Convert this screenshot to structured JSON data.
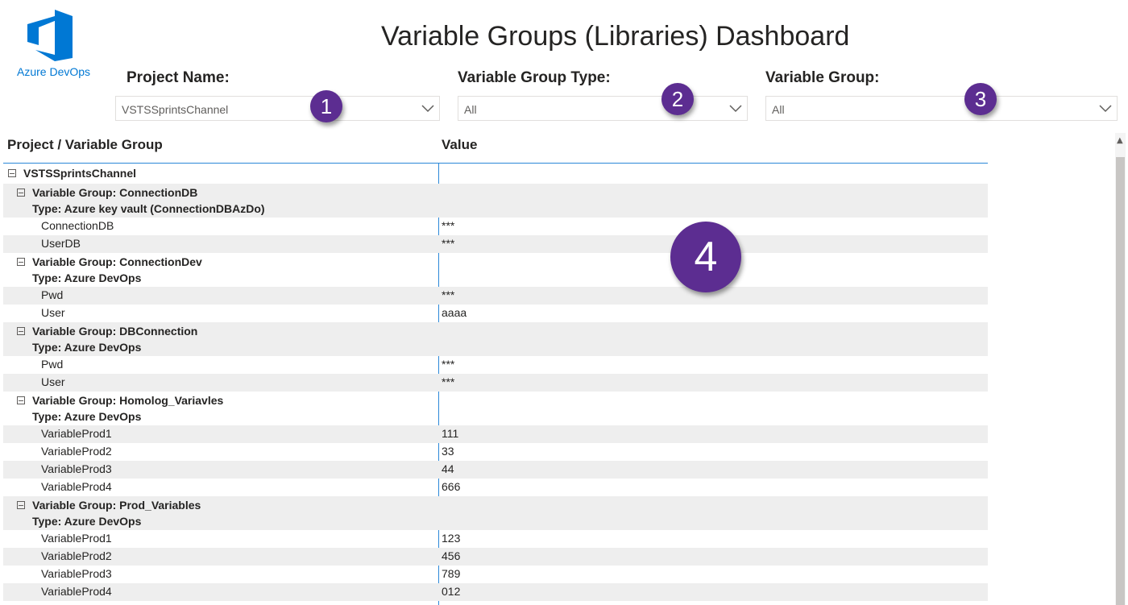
{
  "logo": {
    "text": "Azure DevOps",
    "color": "#0078d4"
  },
  "title": "Variable Groups (Libraries) Dashboard",
  "filters": [
    {
      "label": "Project Name:",
      "value": "VSTSSprintsChannel",
      "badge": "1"
    },
    {
      "label": "Variable Group Type:",
      "value": "All",
      "badge": "2"
    },
    {
      "label": "Variable Group:",
      "value": "All",
      "badge": "3"
    }
  ],
  "matrix_badge": "4",
  "badge_color": "#5c2d91",
  "table": {
    "columns": [
      "Project / Variable Group",
      "Value"
    ],
    "project": "VSTSSprintsChannel",
    "groups": [
      {
        "name": "Variable Group: ConnectionDB",
        "type": "Type: Azure key vault (ConnectionDBAzDo)",
        "vars": [
          {
            "name": "ConnectionDB",
            "value": "***"
          },
          {
            "name": "UserDB",
            "value": "***"
          }
        ]
      },
      {
        "name": "Variable Group: ConnectionDev",
        "type": "Type: Azure DevOps",
        "vars": [
          {
            "name": "Pwd",
            "value": "***"
          },
          {
            "name": "User",
            "value": "aaaa"
          }
        ]
      },
      {
        "name": "Variable Group: DBConnection",
        "type": "Type: Azure DevOps",
        "vars": [
          {
            "name": "Pwd",
            "value": "***"
          },
          {
            "name": "User",
            "value": "***"
          }
        ]
      },
      {
        "name": "Variable Group: Homolog_Variavles",
        "type": "Type: Azure DevOps",
        "vars": [
          {
            "name": "VariableProd1",
            "value": "111"
          },
          {
            "name": "VariableProd2",
            "value": "33"
          },
          {
            "name": "VariableProd3",
            "value": "44"
          },
          {
            "name": "VariableProd4",
            "value": "666"
          }
        ]
      },
      {
        "name": "Variable Group: Prod_Variables",
        "type": "Type: Azure DevOps",
        "vars": [
          {
            "name": "VariableProd1",
            "value": "123"
          },
          {
            "name": "VariableProd2",
            "value": "456"
          },
          {
            "name": "VariableProd3",
            "value": "789"
          },
          {
            "name": "VariableProd4",
            "value": "012"
          }
        ]
      }
    ]
  }
}
